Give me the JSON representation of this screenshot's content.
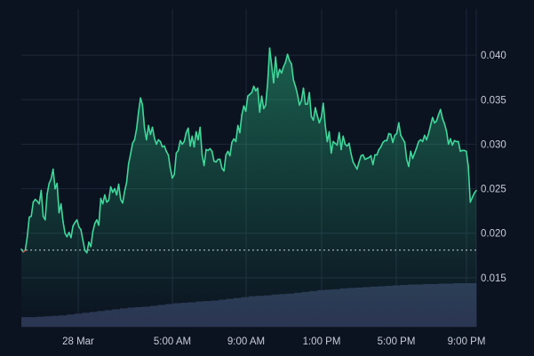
{
  "colors": {
    "background": "#0b1220",
    "grid": "#1e2838",
    "axis_text": "#c7cdd6",
    "line_up": "#3fd89a",
    "line_down": "#e5484d",
    "baseline": "#c7cdd6",
    "volume": "#2b3552",
    "volume_line": "#3a4468"
  },
  "chart_data": {
    "type": "area",
    "title": "",
    "xlabel": "",
    "ylabel": "",
    "grid": true,
    "y_axis_position": "right",
    "x_ticks": [
      "28 Mar",
      "5:00 AM",
      "9:00 AM",
      "1:00 PM",
      "5:00 PM",
      "9:00 PM"
    ],
    "y_ticks": [
      "0.040",
      "0.035",
      "0.030",
      "0.025",
      "0.020",
      "0.015"
    ],
    "ylim": [
      0.0095,
      0.0452
    ],
    "baseline": 0.0181,
    "series": [
      {
        "values": [
          0.0182,
          0.0179,
          0.0181,
          0.0196,
          0.0218,
          0.0219,
          0.0235,
          0.0238,
          0.0236,
          0.0233,
          0.0248,
          0.0219,
          0.0215,
          0.0244,
          0.0256,
          0.0261,
          0.0272,
          0.025,
          0.0256,
          0.0223,
          0.0233,
          0.0213,
          0.02,
          0.0196,
          0.0201,
          0.0195,
          0.0208,
          0.0212,
          0.0215,
          0.0207,
          0.0204,
          0.0192,
          0.0181,
          0.0178,
          0.019,
          0.0185,
          0.0202,
          0.0211,
          0.0215,
          0.0209,
          0.0239,
          0.0233,
          0.0243,
          0.0235,
          0.0237,
          0.0252,
          0.0246,
          0.025,
          0.0243,
          0.0255,
          0.0238,
          0.0234,
          0.0247,
          0.0257,
          0.0278,
          0.0289,
          0.0301,
          0.0305,
          0.0317,
          0.0336,
          0.0352,
          0.0344,
          0.0318,
          0.0305,
          0.0321,
          0.0311,
          0.0319,
          0.0307,
          0.03,
          0.0305,
          0.0303,
          0.0297,
          0.0298,
          0.0292,
          0.0288,
          0.0273,
          0.0262,
          0.0266,
          0.029,
          0.0293,
          0.0304,
          0.03,
          0.0303,
          0.0313,
          0.0318,
          0.0298,
          0.0309,
          0.0297,
          0.0314,
          0.0305,
          0.0319,
          0.0288,
          0.0276,
          0.0294,
          0.0293,
          0.0295,
          0.0292,
          0.0281,
          0.028,
          0.0283,
          0.0283,
          0.0273,
          0.027,
          0.0288,
          0.0292,
          0.0287,
          0.0302,
          0.0306,
          0.0303,
          0.0321,
          0.0313,
          0.0333,
          0.0343,
          0.0337,
          0.0354,
          0.0356,
          0.0358,
          0.0365,
          0.036,
          0.0363,
          0.0336,
          0.0354,
          0.034,
          0.0344,
          0.0369,
          0.0408,
          0.0389,
          0.0369,
          0.0398,
          0.0375,
          0.0384,
          0.038,
          0.0387,
          0.0392,
          0.0401,
          0.0394,
          0.039,
          0.0372,
          0.0365,
          0.0356,
          0.0344,
          0.0349,
          0.0363,
          0.0345,
          0.0345,
          0.0358,
          0.0331,
          0.0327,
          0.0341,
          0.0332,
          0.0324,
          0.033,
          0.0346,
          0.0321,
          0.0303,
          0.0314,
          0.029,
          0.0303,
          0.0301,
          0.0299,
          0.0313,
          0.0294,
          0.0309,
          0.03,
          0.0298,
          0.0301,
          0.0289,
          0.028,
          0.0276,
          0.0272,
          0.028,
          0.0287,
          0.0288,
          0.0283,
          0.0284,
          0.0285,
          0.0287,
          0.0277,
          0.0288,
          0.0288,
          0.0294,
          0.0297,
          0.0302,
          0.0304,
          0.0304,
          0.0312,
          0.0311,
          0.0302,
          0.031,
          0.0312,
          0.0324,
          0.031,
          0.0306,
          0.0302,
          0.0283,
          0.0275,
          0.0292,
          0.0284,
          0.029,
          0.0296,
          0.0303,
          0.0305,
          0.0303,
          0.031,
          0.0305,
          0.0312,
          0.0321,
          0.033,
          0.0324,
          0.0326,
          0.0333,
          0.0339,
          0.0329,
          0.0323,
          0.0315,
          0.03,
          0.0306,
          0.0299,
          0.0304,
          0.0303,
          0.0303,
          0.0292,
          0.0293,
          0.0293,
          0.0292,
          0.0275,
          0.0235,
          0.024,
          0.0245,
          0.0248
        ]
      }
    ],
    "volume": {
      "description": "volume histogram along the bottom",
      "values": [
        0.22,
        0.22,
        0.23,
        0.24,
        0.25,
        0.26,
        0.28,
        0.3,
        0.32,
        0.34,
        0.36,
        0.38,
        0.4,
        0.42,
        0.44,
        0.45,
        0.46,
        0.48,
        0.5,
        0.52,
        0.54,
        0.55,
        0.56,
        0.58,
        0.59,
        0.6,
        0.62,
        0.64,
        0.66,
        0.68,
        0.7,
        0.71,
        0.72,
        0.74,
        0.75,
        0.76,
        0.78,
        0.8,
        0.82,
        0.84,
        0.85,
        0.86,
        0.88,
        0.89,
        0.9,
        0.91,
        0.92,
        0.93,
        0.94,
        0.95,
        0.96,
        0.97,
        0.97,
        0.98,
        0.98,
        0.99,
        0.99,
        1.0,
        1.0,
        1.0
      ]
    }
  }
}
